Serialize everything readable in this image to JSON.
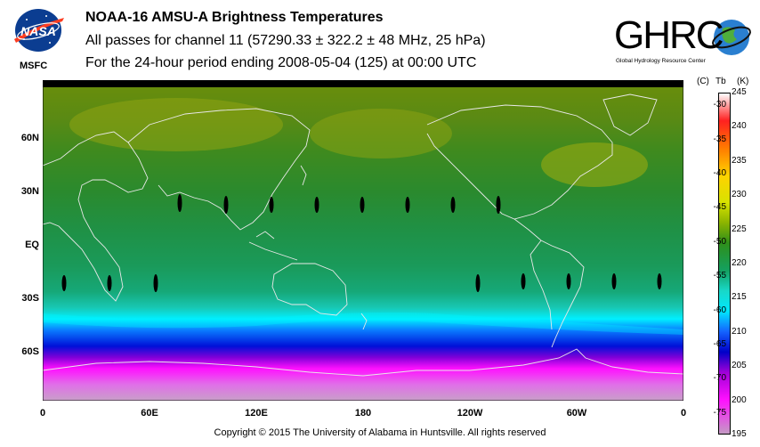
{
  "header": {
    "nasa_logo_icon": "nasa-meatball-icon",
    "nasa_logo_text": "NASA",
    "msfc_label": "MSFC",
    "title": "NOAA-16 AMSU-A Brightness Temperatures",
    "subtitle": "All passes for channel 11 (57290.33 ± 322.2 ± 48 MHz, 25 hPa)",
    "period": "For the 24-hour period ending 2008-05-04 (125) at 00:00 UTC",
    "ghrc_logo_text": "GHRC",
    "ghrc_subtitle": "Global Hydrology Resource Center"
  },
  "map": {
    "latitude_labels": [
      {
        "label": "60N",
        "lat": 60
      },
      {
        "label": "30N",
        "lat": 30
      },
      {
        "label": "EQ",
        "lat": 0
      },
      {
        "label": "30S",
        "lat": -30
      },
      {
        "label": "60S",
        "lat": -60
      }
    ],
    "longitude_labels": [
      {
        "label": "0",
        "lon": 0
      },
      {
        "label": "60E",
        "lon": 60
      },
      {
        "label": "120E",
        "lon": 120
      },
      {
        "label": "180",
        "lon": 180
      },
      {
        "label": "120W",
        "lon": 240
      },
      {
        "label": "60W",
        "lon": 300
      },
      {
        "label": "0",
        "lon": 360
      }
    ],
    "lon_range": [
      0,
      360
    ],
    "lat_range": [
      -90,
      90
    ]
  },
  "colorbar": {
    "unit_c": "(C)",
    "unit_tb": "Tb",
    "unit_k": "(K)",
    "celsius_ticks": [
      "-30",
      "-35",
      "-40",
      "-45",
      "-50",
      "-55",
      "-60",
      "-65",
      "-70",
      "-75"
    ],
    "kelvin_ticks": [
      "245",
      "240",
      "235",
      "230",
      "225",
      "220",
      "215",
      "210",
      "205",
      "200",
      "195"
    ],
    "k_range": [
      195,
      245
    ],
    "stops": [
      {
        "k": 245,
        "color": "#ffffff"
      },
      {
        "k": 241,
        "color": "#ff2020"
      },
      {
        "k": 237,
        "color": "#ff7a00"
      },
      {
        "k": 233,
        "color": "#ffd200"
      },
      {
        "k": 229,
        "color": "#d8e200"
      },
      {
        "k": 226,
        "color": "#8cb400"
      },
      {
        "k": 223,
        "color": "#2e8f1a"
      },
      {
        "k": 219,
        "color": "#14a060"
      },
      {
        "k": 216,
        "color": "#18d8c8"
      },
      {
        "k": 213,
        "color": "#00e8ff"
      },
      {
        "k": 210,
        "color": "#1464ff"
      },
      {
        "k": 207,
        "color": "#0000c8"
      },
      {
        "k": 204,
        "color": "#a000d8"
      },
      {
        "k": 200,
        "color": "#ff10ff"
      },
      {
        "k": 195,
        "color": "#c49ac4"
      }
    ]
  },
  "copyright": "Copyright © 2015 The University of Alabama in Huntsville.  All rights reserved"
}
